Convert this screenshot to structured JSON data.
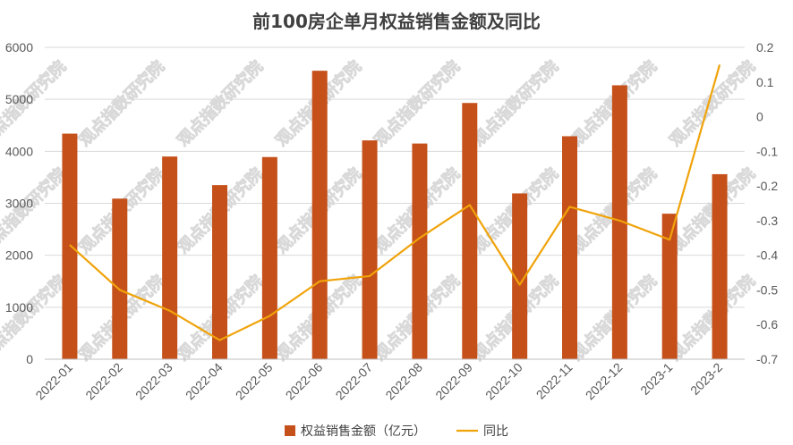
{
  "chart_data": {
    "type": "bar+line",
    "title": "前100房企单月权益销售金额及同比",
    "categories": [
      "2022-01",
      "2022-02",
      "2022-03",
      "2022-04",
      "2022-05",
      "2022-06",
      "2022-07",
      "2022-08",
      "2022-09",
      "2022-10",
      "2022-11",
      "2022-12",
      "2023-1",
      "2023-2"
    ],
    "series": [
      {
        "name": "权益销售金额（亿元）",
        "type": "bar",
        "axis": "left",
        "color": "#C5501A",
        "values": [
          4340,
          3090,
          3900,
          3350,
          3890,
          5550,
          4210,
          4150,
          4930,
          3190,
          4290,
          5270,
          2800,
          3560
        ]
      },
      {
        "name": "同比",
        "type": "line",
        "axis": "right",
        "color": "#F0A30A",
        "values": [
          -0.37,
          -0.5,
          -0.56,
          -0.645,
          -0.575,
          -0.475,
          -0.46,
          -0.35,
          -0.255,
          -0.485,
          -0.26,
          -0.3,
          -0.355,
          0.15
        ]
      }
    ],
    "y_left": {
      "min": 0,
      "max": 6000,
      "ticks": [
        0,
        1000,
        2000,
        3000,
        4000,
        5000,
        6000
      ]
    },
    "y_right": {
      "min": -0.7,
      "max": 0.2,
      "ticks": [
        "-0.7",
        "-0.6",
        "-0.5",
        "-0.4",
        "-0.3",
        "-0.2",
        "-0.1",
        "0",
        "0.1",
        "0.2"
      ]
    },
    "gridlines": true,
    "legend_position": "bottom",
    "watermark": "观点指数研究院"
  }
}
